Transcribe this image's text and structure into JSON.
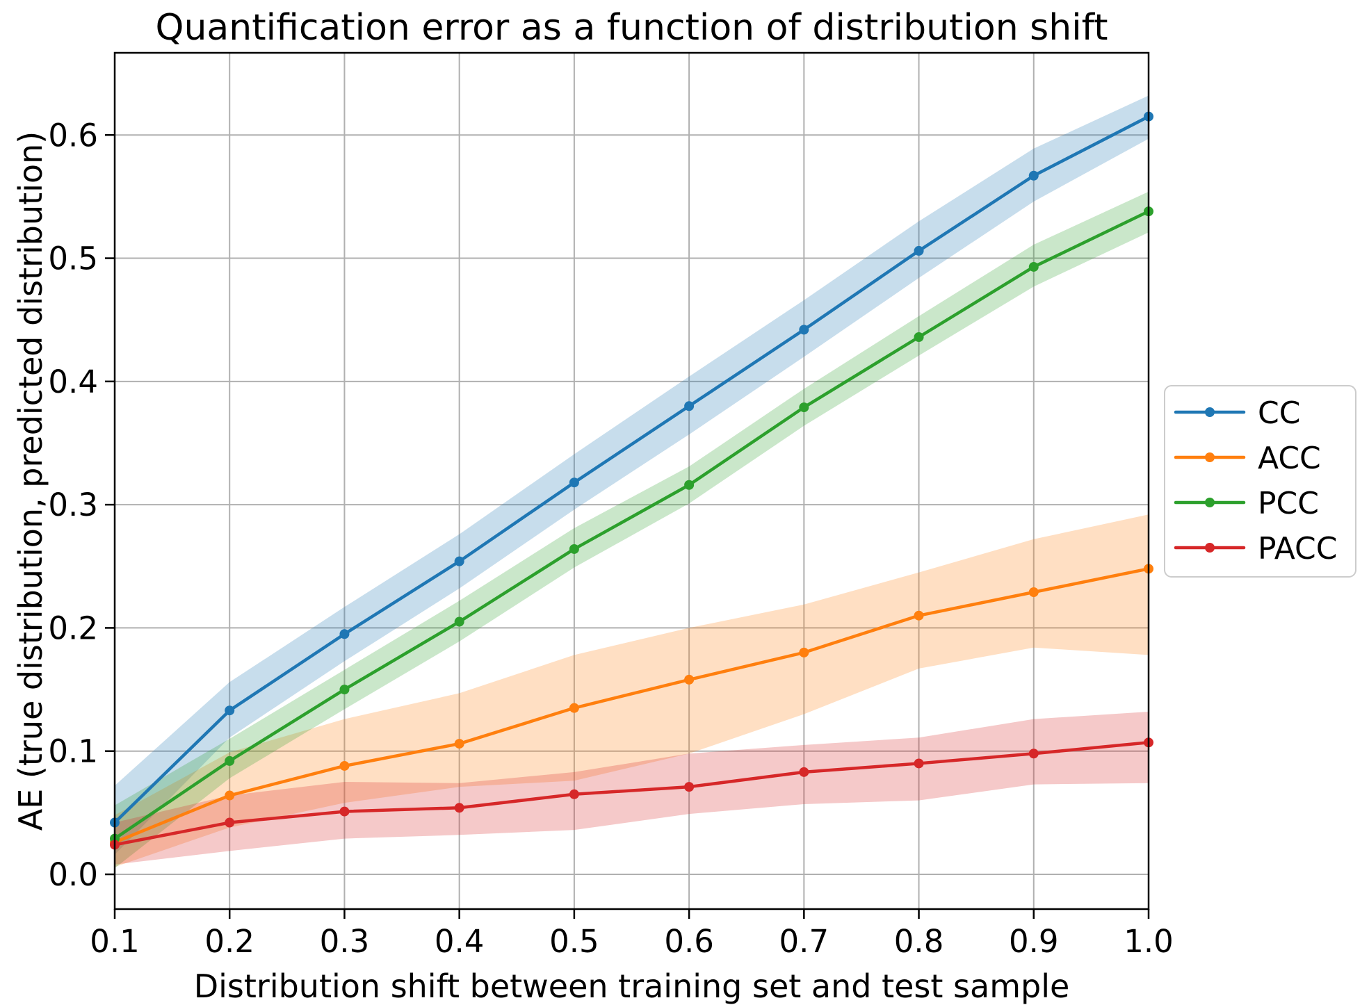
{
  "chart_data": {
    "type": "line",
    "title": "Quantification error as a function of distribution shift",
    "xlabel": "Distribution shift between training set and test sample",
    "ylabel": "AE (true distribution, predicted distribution)",
    "grid": true,
    "legend_position": "outside-right",
    "background_color": "#ffffff",
    "grid_color": "#b0b0b0",
    "spine_color": "#000000",
    "legend_border_color": "#cccccc",
    "band_opacity": 0.25,
    "xlim": [
      0.1,
      1.0
    ],
    "ylim": [
      -0.0282,
      0.6667
    ],
    "x": [
      0.1,
      0.2,
      0.3,
      0.4,
      0.5,
      0.6,
      0.7,
      0.8,
      0.9,
      1.0
    ],
    "x_ticks": [
      0.1,
      0.2,
      0.3,
      0.4,
      0.5,
      0.6,
      0.7,
      0.8,
      0.9,
      1.0
    ],
    "x_tick_labels": [
      "0.1",
      "0.2",
      "0.3",
      "0.4",
      "0.5",
      "0.6",
      "0.7",
      "0.8",
      "0.9",
      "1.0"
    ],
    "y_ticks": [
      0.0,
      0.1,
      0.2,
      0.3,
      0.4,
      0.5,
      0.6
    ],
    "y_tick_labels": [
      "0.0",
      "0.1",
      "0.2",
      "0.3",
      "0.4",
      "0.5",
      "0.6"
    ],
    "series": [
      {
        "name": "CC",
        "color": "#1f77b4",
        "values": [
          0.042,
          0.133,
          0.195,
          0.254,
          0.318,
          0.38,
          0.442,
          0.506,
          0.567,
          0.615
        ],
        "band_lower": [
          0.016,
          0.111,
          0.173,
          0.232,
          0.296,
          0.357,
          0.42,
          0.484,
          0.546,
          0.597
        ],
        "band_upper": [
          0.072,
          0.156,
          0.217,
          0.276,
          0.341,
          0.404,
          0.466,
          0.53,
          0.589,
          0.632
        ]
      },
      {
        "name": "ACC",
        "color": "#ff7f0e",
        "values": [
          0.026,
          0.064,
          0.088,
          0.106,
          0.135,
          0.158,
          0.18,
          0.21,
          0.229,
          0.248
        ],
        "band_lower": [
          0.006,
          0.038,
          0.058,
          0.071,
          0.076,
          0.098,
          0.13,
          0.167,
          0.184,
          0.178
        ],
        "band_upper": [
          0.048,
          0.099,
          0.126,
          0.147,
          0.178,
          0.2,
          0.219,
          0.245,
          0.272,
          0.292
        ]
      },
      {
        "name": "PCC",
        "color": "#2ca02c",
        "values": [
          0.029,
          0.092,
          0.15,
          0.205,
          0.264,
          0.316,
          0.379,
          0.436,
          0.493,
          0.538
        ],
        "band_lower": [
          0.005,
          0.078,
          0.134,
          0.189,
          0.249,
          0.301,
          0.364,
          0.421,
          0.477,
          0.521
        ],
        "band_upper": [
          0.056,
          0.11,
          0.166,
          0.222,
          0.281,
          0.331,
          0.394,
          0.453,
          0.511,
          0.554
        ]
      },
      {
        "name": "PACC",
        "color": "#d62728",
        "values": [
          0.024,
          0.042,
          0.051,
          0.054,
          0.065,
          0.071,
          0.083,
          0.09,
          0.098,
          0.107
        ],
        "band_lower": [
          0.008,
          0.019,
          0.029,
          0.032,
          0.036,
          0.049,
          0.057,
          0.06,
          0.073,
          0.074
        ],
        "band_upper": [
          0.042,
          0.064,
          0.075,
          0.074,
          0.083,
          0.098,
          0.105,
          0.111,
          0.126,
          0.132
        ]
      }
    ]
  }
}
